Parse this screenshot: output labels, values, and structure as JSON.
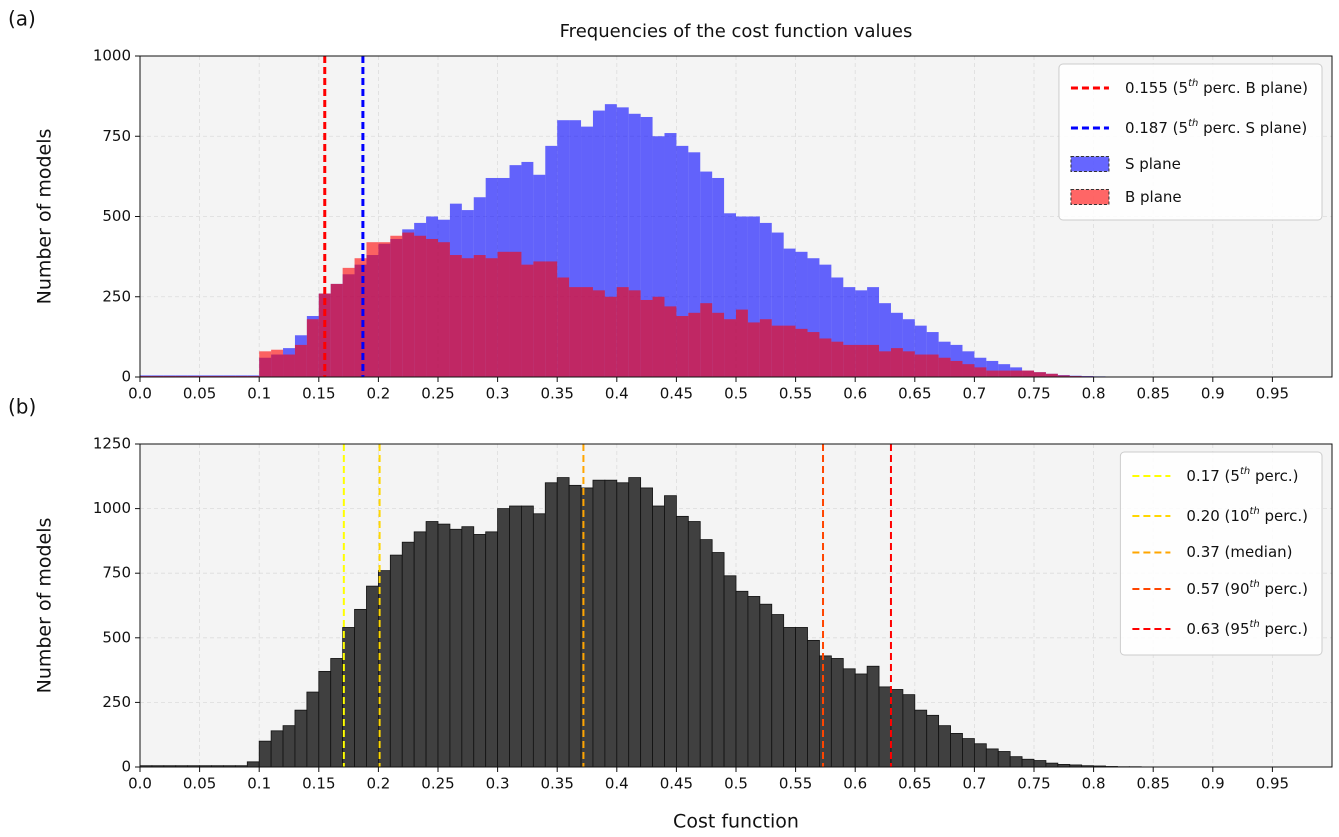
{
  "chart_data": [
    {
      "type": "histogram",
      "label": "(a)",
      "title": "Frequencies of the cost function values",
      "ylabel": "Number of models",
      "bins": [
        0,
        0.01,
        0.02,
        0.03,
        0.04,
        0.05,
        0.06,
        0.07,
        0.08,
        0.09,
        0.1,
        0.11,
        0.12,
        0.13,
        0.14,
        0.15,
        0.16,
        0.17,
        0.18,
        0.19,
        0.2,
        0.21,
        0.22,
        0.23,
        0.24,
        0.25,
        0.26,
        0.27,
        0.28,
        0.29,
        0.3,
        0.31,
        0.32,
        0.33,
        0.34,
        0.35,
        0.36,
        0.37,
        0.38,
        0.39,
        0.4,
        0.41,
        0.42,
        0.43,
        0.44,
        0.45,
        0.46,
        0.47,
        0.48,
        0.49,
        0.5,
        0.51,
        0.52,
        0.53,
        0.54,
        0.55,
        0.56,
        0.57,
        0.58,
        0.59,
        0.6,
        0.61,
        0.62,
        0.63,
        0.64,
        0.65,
        0.66,
        0.67,
        0.68,
        0.69,
        0.7,
        0.71,
        0.72,
        0.73,
        0.74,
        0.75,
        0.76,
        0.77,
        0.78,
        0.79,
        0.8,
        0.81,
        0.82,
        0.83,
        0.84,
        0.85
      ],
      "series": [
        {
          "name": "S plane",
          "color": "#0000ff",
          "alpha": 0.6,
          "values": [
            5,
            5,
            5,
            5,
            5,
            5,
            5,
            5,
            5,
            5,
            60,
            70,
            90,
            130,
            190,
            260,
            290,
            320,
            350,
            380,
            415,
            430,
            460,
            480,
            500,
            490,
            540,
            520,
            560,
            620,
            620,
            660,
            670,
            630,
            720,
            800,
            800,
            780,
            830,
            850,
            840,
            820,
            810,
            750,
            760,
            720,
            700,
            640,
            620,
            510,
            500,
            500,
            480,
            450,
            400,
            390,
            370,
            350,
            310,
            280,
            270,
            280,
            230,
            200,
            180,
            160,
            140,
            110,
            100,
            80,
            60,
            50,
            40,
            30,
            20,
            15,
            10,
            6,
            4,
            3,
            2,
            1,
            1,
            1,
            0
          ]
        },
        {
          "name": "B plane",
          "color": "#ff0000",
          "alpha": 0.6,
          "values": [
            3,
            3,
            3,
            3,
            3,
            3,
            3,
            3,
            3,
            3,
            80,
            85,
            70,
            100,
            180,
            260,
            290,
            340,
            370,
            420,
            420,
            440,
            450,
            440,
            430,
            420,
            380,
            370,
            380,
            370,
            390,
            390,
            350,
            360,
            360,
            310,
            280,
            280,
            270,
            250,
            280,
            270,
            240,
            250,
            220,
            190,
            200,
            230,
            200,
            180,
            210,
            170,
            180,
            160,
            160,
            150,
            140,
            120,
            110,
            100,
            100,
            100,
            80,
            90,
            80,
            70,
            70,
            60,
            50,
            40,
            30,
            20,
            20,
            20,
            20,
            15,
            10,
            5,
            3,
            2,
            1,
            0,
            0,
            0,
            0
          ]
        }
      ],
      "vlines": [
        {
          "name": "0.155 (5th perc. B plane)",
          "color": "#ff0000",
          "x": 0.155
        },
        {
          "name": "0.187 (5th perc. S plane)",
          "color": "#0000ff",
          "x": 0.187
        }
      ],
      "xlim": [
        0,
        1.0
      ],
      "ylim": [
        0,
        1000
      ],
      "xticks": [
        {
          "value": 0,
          "label": "0.0"
        },
        0.05,
        0.1,
        0.15,
        0.2,
        0.25,
        0.3,
        0.35,
        0.4,
        0.45,
        0.5,
        0.55,
        0.6,
        0.65,
        0.7,
        0.75,
        0.8,
        0.85,
        0.9,
        0.95
      ],
      "yticks": [
        0,
        250,
        500,
        750,
        1000
      ],
      "grid": true,
      "legend": "upper right"
    },
    {
      "type": "histogram",
      "label": "(b)",
      "xlabel": "Cost function",
      "ylabel": "Number of models",
      "bins": [
        0,
        0.01,
        0.02,
        0.03,
        0.04,
        0.05,
        0.06,
        0.07,
        0.08,
        0.09,
        0.1,
        0.11,
        0.12,
        0.13,
        0.14,
        0.15,
        0.16,
        0.17,
        0.18,
        0.19,
        0.2,
        0.21,
        0.22,
        0.23,
        0.24,
        0.25,
        0.26,
        0.27,
        0.28,
        0.29,
        0.3,
        0.31,
        0.32,
        0.33,
        0.34,
        0.35,
        0.36,
        0.37,
        0.38,
        0.39,
        0.4,
        0.41,
        0.42,
        0.43,
        0.44,
        0.45,
        0.46,
        0.47,
        0.48,
        0.49,
        0.5,
        0.51,
        0.52,
        0.53,
        0.54,
        0.55,
        0.56,
        0.57,
        0.58,
        0.59,
        0.6,
        0.61,
        0.62,
        0.63,
        0.64,
        0.65,
        0.66,
        0.67,
        0.68,
        0.69,
        0.7,
        0.71,
        0.72,
        0.73,
        0.74,
        0.75,
        0.76,
        0.77,
        0.78,
        0.79,
        0.8,
        0.81,
        0.82,
        0.83,
        0.84,
        0.85
      ],
      "series": [
        {
          "color": "#404040",
          "alpha": 1,
          "values": [
            5,
            5,
            5,
            5,
            5,
            5,
            5,
            5,
            5,
            20,
            100,
            140,
            160,
            220,
            290,
            370,
            420,
            540,
            610,
            700,
            760,
            820,
            870,
            910,
            950,
            940,
            920,
            930,
            900,
            910,
            1000,
            1010,
            1010,
            980,
            1100,
            1120,
            1090,
            1080,
            1110,
            1110,
            1100,
            1120,
            1080,
            1010,
            1050,
            970,
            950,
            880,
            830,
            740,
            680,
            660,
            630,
            590,
            540,
            540,
            490,
            430,
            420,
            380,
            360,
            390,
            310,
            300,
            280,
            220,
            200,
            160,
            130,
            110,
            90,
            70,
            60,
            40,
            30,
            25,
            15,
            10,
            8,
            5,
            4,
            2,
            1,
            1,
            0
          ]
        }
      ],
      "vlines": [
        {
          "name": "0.17 (5th perc.)",
          "color": "#ffff00",
          "x": 0.171
        },
        {
          "name": "0.20 (10th perc.)",
          "color": "#ffd700",
          "x": 0.201
        },
        {
          "name": "0.37 (median)",
          "color": "#ffa500",
          "x": 0.372
        },
        {
          "name": "0.57 (90th perc.)",
          "color": "#ff4500",
          "x": 0.573
        },
        {
          "name": "0.63 (95th perc.)",
          "color": "#ff0000",
          "x": 0.63
        }
      ],
      "xlim": [
        0,
        1.0
      ],
      "ylim": [
        0,
        1250
      ],
      "xticks": [
        {
          "value": 0,
          "label": "0.0"
        },
        0.05,
        0.1,
        0.15,
        0.2,
        0.25,
        0.3,
        0.35,
        0.4,
        0.45,
        0.5,
        0.55,
        0.6,
        0.65,
        0.7,
        0.75,
        0.8,
        0.85,
        0.9,
        0.95
      ],
      "yticks": [
        0,
        250,
        500,
        750,
        1000,
        1250
      ],
      "grid": true,
      "legend": "upper right"
    }
  ]
}
